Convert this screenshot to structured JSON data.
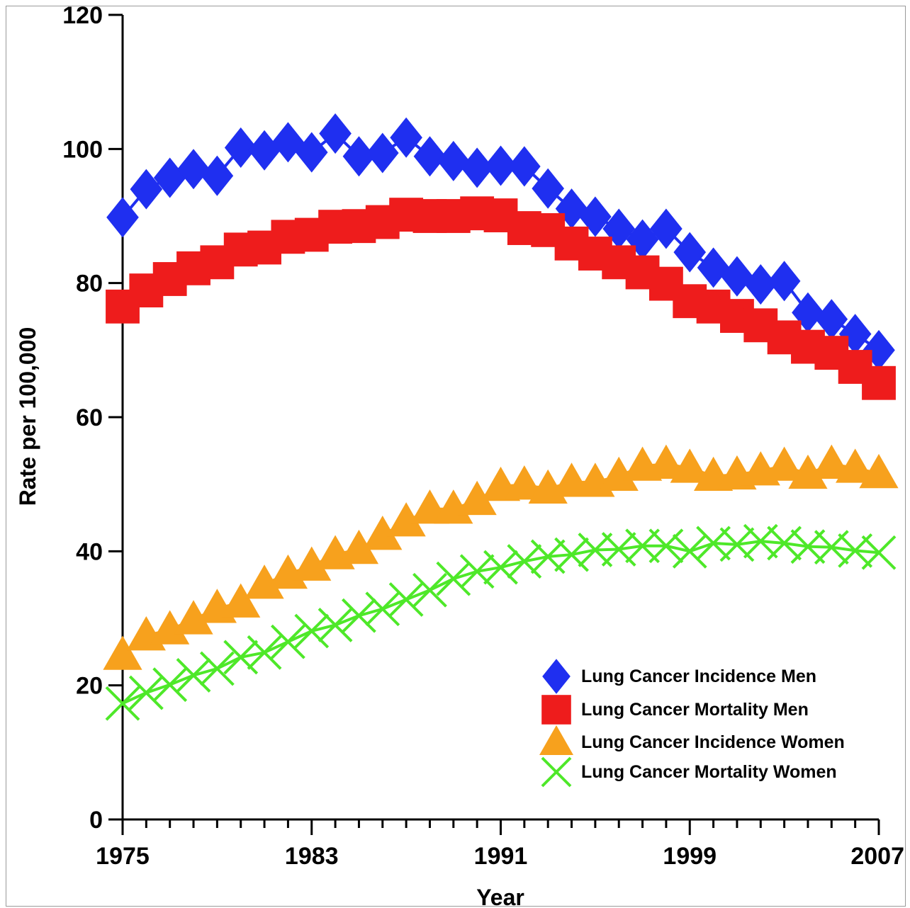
{
  "chart_data": {
    "type": "line",
    "title": "",
    "xlabel": "Year",
    "ylabel": "Rate per 100,000",
    "xlim": [
      1975,
      2007
    ],
    "ylim": [
      0,
      120
    ],
    "x_ticks_major": [
      1975,
      1983,
      1991,
      1999,
      2007
    ],
    "y_ticks": [
      0,
      20,
      40,
      60,
      80,
      100,
      120
    ],
    "grid": false,
    "legend_position": "bottom-right",
    "x": [
      1975,
      1976,
      1977,
      1978,
      1979,
      1980,
      1981,
      1982,
      1983,
      1984,
      1985,
      1986,
      1987,
      1988,
      1989,
      1990,
      1991,
      1992,
      1993,
      1994,
      1995,
      1996,
      1997,
      1998,
      1999,
      2000,
      2001,
      2002,
      2003,
      2004,
      2005,
      2006,
      2007
    ],
    "series": [
      {
        "name": "Lung Cancer Incidence Men",
        "color": "#1f2ff0",
        "marker": "diamond",
        "values": [
          89.8,
          94.0,
          95.7,
          97.0,
          96.0,
          100.2,
          99.8,
          101.0,
          99.5,
          102.3,
          98.9,
          99.4,
          101.7,
          98.9,
          98.2,
          97.2,
          97.5,
          97.4,
          94.1,
          91.1,
          89.9,
          88.1,
          86.5,
          88.1,
          84.6,
          82.3,
          81.0,
          79.8,
          80.3,
          75.6,
          74.6,
          72.4,
          70.0
        ]
      },
      {
        "name": "Lung Cancer Mortality Men",
        "color": "#ee1c1c",
        "marker": "square",
        "values": [
          76.5,
          78.9,
          80.6,
          82.2,
          83.1,
          85.0,
          85.3,
          86.9,
          87.2,
          88.4,
          88.5,
          89.1,
          90.2,
          90.0,
          90.0,
          90.4,
          90.1,
          88.2,
          87.9,
          85.9,
          84.4,
          83.1,
          81.6,
          79.9,
          77.3,
          76.5,
          75.1,
          73.7,
          71.9,
          70.5,
          69.6,
          67.5,
          65.1
        ]
      },
      {
        "name": "Lung Cancer Incidence Women",
        "color": "#f7a11d",
        "marker": "triangle",
        "values": [
          24.5,
          27.4,
          28.3,
          29.8,
          31.5,
          32.3,
          35.1,
          36.6,
          37.8,
          39.5,
          40.3,
          42.4,
          44.4,
          46.3,
          46.3,
          47.6,
          49.7,
          49.9,
          49.3,
          50.3,
          50.3,
          51.2,
          52.7,
          53.0,
          52.4,
          51.2,
          51.4,
          52.0,
          52.7,
          51.5,
          53.0,
          52.4,
          51.6
        ]
      },
      {
        "name": "Lung Cancer Mortality Women",
        "color": "#4ee829",
        "marker": "x",
        "values": [
          17.3,
          18.9,
          20.1,
          21.5,
          22.5,
          24.2,
          24.9,
          26.5,
          28.1,
          29.0,
          30.4,
          31.4,
          32.8,
          34.2,
          35.9,
          37.0,
          37.6,
          38.5,
          39.2,
          39.5,
          40.2,
          40.3,
          40.8,
          40.8,
          40.0,
          41.2,
          41.0,
          41.5,
          41.2,
          40.7,
          40.6,
          40.1,
          39.8
        ]
      }
    ]
  }
}
